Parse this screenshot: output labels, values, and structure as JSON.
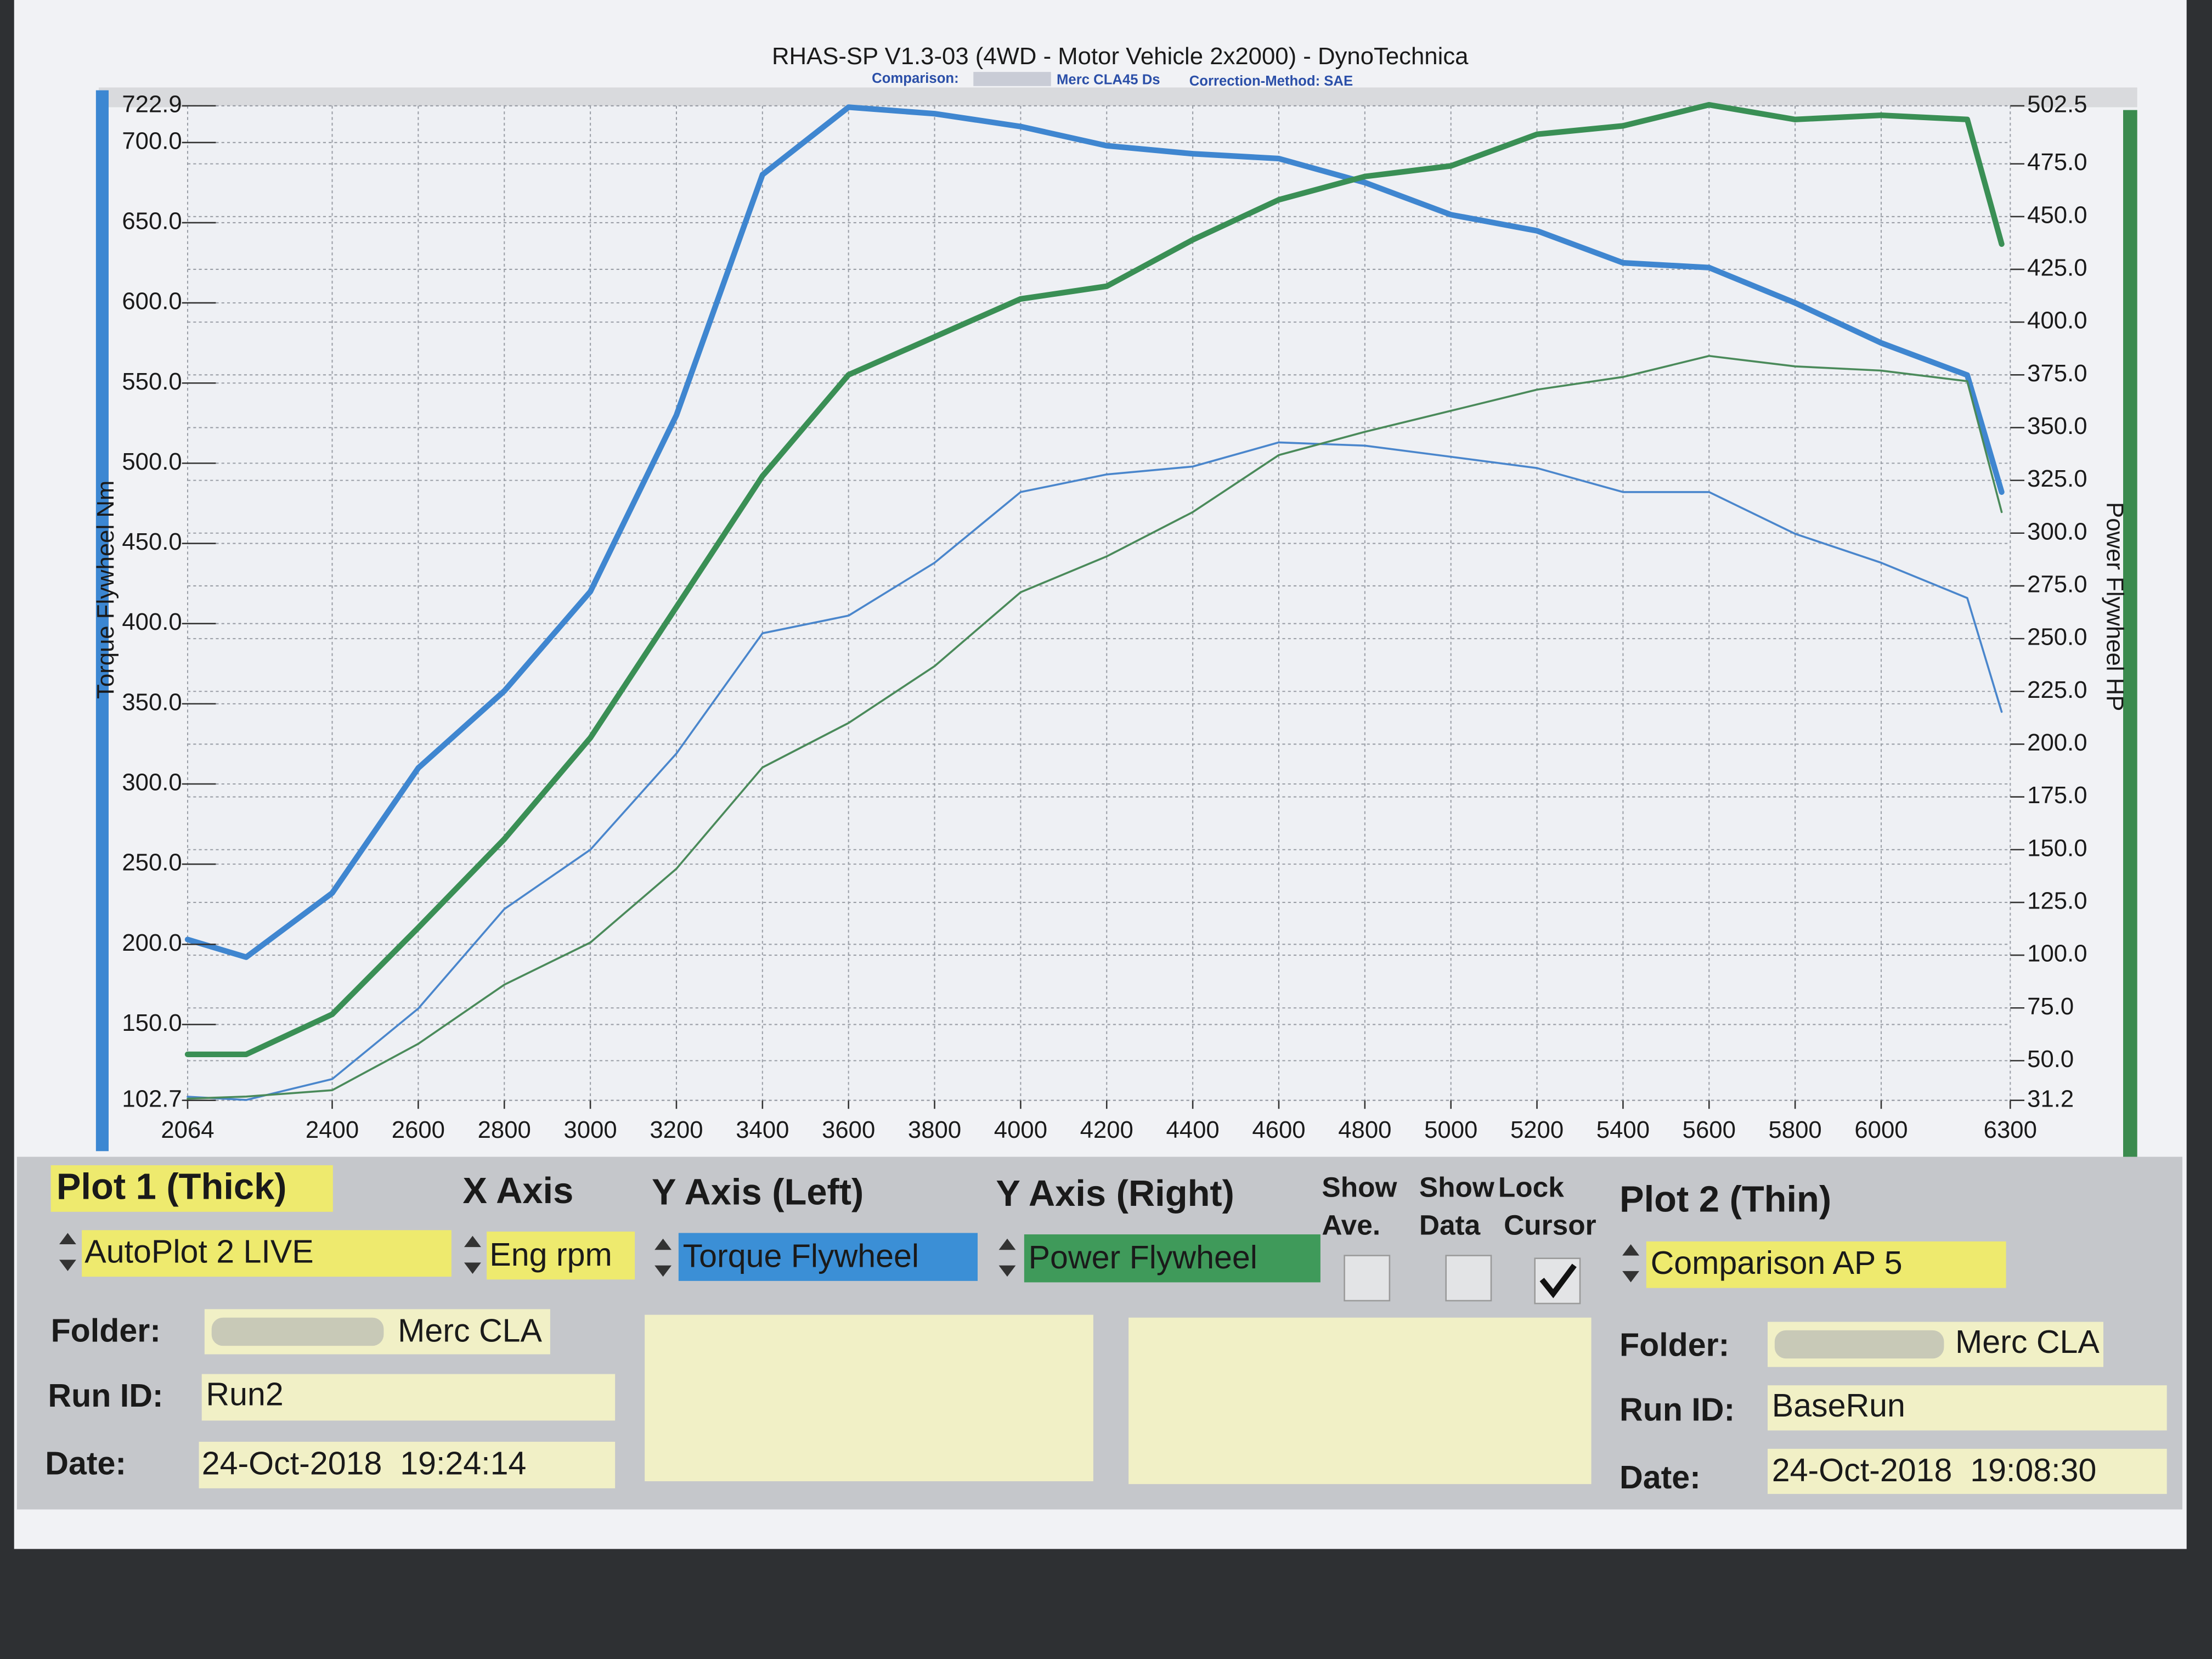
{
  "chart_data": {
    "type": "line",
    "title": "RHAS-SP V1.3-03  (4WD - Motor Vehicle 2x2000) - DynoTechnica",
    "subtitle": [
      "Comparison:",
      "Merc CLA45 Ds",
      "Correction-Method: SAE"
    ],
    "ylabel": "Torque Flywheel Nm",
    "y2label": "Power Flywheel HP",
    "x": [
      2064,
      2200,
      2400,
      2600,
      2800,
      3000,
      3200,
      3400,
      3600,
      3800,
      4000,
      4200,
      4400,
      4600,
      4800,
      5000,
      5200,
      5400,
      5600,
      5800,
      6000,
      6200,
      6280
    ],
    "series": [
      {
        "color": "#3f86d0",
        "values": [
          203,
          192,
          232,
          310,
          358,
          420,
          530,
          680,
          722,
          718,
          710,
          698,
          693,
          690,
          675,
          655,
          645,
          625,
          622,
          600,
          575,
          555,
          482
        ]
      },
      {
        "color": "#3a8f55",
        "axis": "y2",
        "values": [
          53,
          53,
          72,
          113,
          155,
          203,
          265,
          327,
          375,
          393,
          411,
          417,
          439,
          458,
          469,
          474,
          489,
          493,
          503,
          496,
          498,
          496,
          437
        ]
      },
      {
        "color": "#4a86cc",
        "values": [
          105,
          103,
          116,
          160,
          222,
          259,
          319,
          394,
          405,
          438,
          482,
          493,
          498,
          513,
          511,
          504,
          497,
          482,
          482,
          456,
          438,
          416,
          345
        ]
      },
      {
        "color": "#4a8a5a",
        "axis": "y2",
        "values": [
          32,
          33,
          36,
          58,
          86,
          106,
          141,
          189,
          210,
          237,
          272,
          289,
          310,
          337,
          348,
          358,
          368,
          374,
          384,
          379,
          377,
          372,
          310
        ]
      }
    ],
    "xlim": [
      2064,
      6300
    ],
    "xticks": [
      2064,
      2400,
      2600,
      2800,
      3000,
      3200,
      3400,
      3600,
      3800,
      4000,
      4200,
      4400,
      4600,
      4800,
      5000,
      5200,
      5400,
      5600,
      5800,
      6000,
      6300
    ],
    "ylim": [
      102.7,
      722.9
    ],
    "yticks": [
      102.7,
      {
        "value": 150,
        "label": "150.0"
      },
      {
        "value": 200,
        "label": "200.0"
      },
      {
        "value": 250,
        "label": "250.0"
      },
      {
        "value": 300,
        "label": "300.0"
      },
      {
        "value": 350,
        "label": "350.0"
      },
      {
        "value": 400,
        "label": "400.0"
      },
      {
        "value": 450,
        "label": "450.0"
      },
      {
        "value": 500,
        "label": "500.0"
      },
      {
        "value": 550,
        "label": "550.0"
      },
      {
        "value": 600,
        "label": "600.0"
      },
      {
        "value": 650,
        "label": "650.0"
      },
      {
        "value": 700,
        "label": "700.0"
      },
      722.9
    ],
    "y2lim": [
      31.2,
      502.5
    ],
    "y2ticks": [
      31.2,
      {
        "value": 50,
        "label": "50.0"
      },
      {
        "value": 75,
        "label": "75.0"
      },
      {
        "value": 100,
        "label": "100.0"
      },
      {
        "value": 125,
        "label": "125.0"
      },
      {
        "value": 150,
        "label": "150.0"
      },
      {
        "value": 175,
        "label": "175.0"
      },
      {
        "value": 200,
        "label": "200.0"
      },
      {
        "value": 225,
        "label": "225.0"
      },
      {
        "value": 250,
        "label": "250.0"
      },
      {
        "value": 275,
        "label": "275.0"
      },
      {
        "value": 300,
        "label": "300.0"
      },
      {
        "value": 325,
        "label": "325.0"
      },
      {
        "value": 350,
        "label": "350.0"
      },
      {
        "value": 375,
        "label": "375.0"
      },
      {
        "value": 400,
        "label": "400.0"
      },
      {
        "value": 425,
        "label": "425.0"
      },
      {
        "value": 450,
        "label": "450.0"
      },
      {
        "value": 475,
        "label": "475.0"
      },
      502.5
    ],
    "grid": true
  },
  "panel": {
    "plot1": {
      "heading": "Plot 1 (Thick)",
      "select": "AutoPlot 2 LIVE",
      "folder_label": "Folder:",
      "folder": "Merc CLA",
      "run_label": "Run ID:",
      "run": "Run2",
      "date_label": "Date:",
      "date": "24-Oct-2018  19:24:14"
    },
    "x_axis": {
      "heading": "X Axis",
      "select": "Eng rpm"
    },
    "y_left": {
      "heading": "Y Axis (Left)",
      "select": "Torque Flywheel"
    },
    "y_right": {
      "heading": "Y Axis (Right)",
      "select": "Power Flywheel"
    },
    "checks": [
      {
        "label": [
          "Show",
          "Ave."
        ],
        "checked": false
      },
      {
        "label": [
          "Show",
          "Data"
        ],
        "checked": false
      },
      {
        "label": [
          "Lock",
          "Cursor"
        ],
        "checked": true
      }
    ],
    "plot2": {
      "heading": "Plot 2 (Thin)",
      "select": "Comparison AP 5",
      "folder_label": "Folder:",
      "folder": "Merc CLA",
      "run_label": "Run ID:",
      "run": "BaseRun",
      "date_label": "Date:",
      "date": "24-Oct-2018  19:08:30"
    }
  }
}
